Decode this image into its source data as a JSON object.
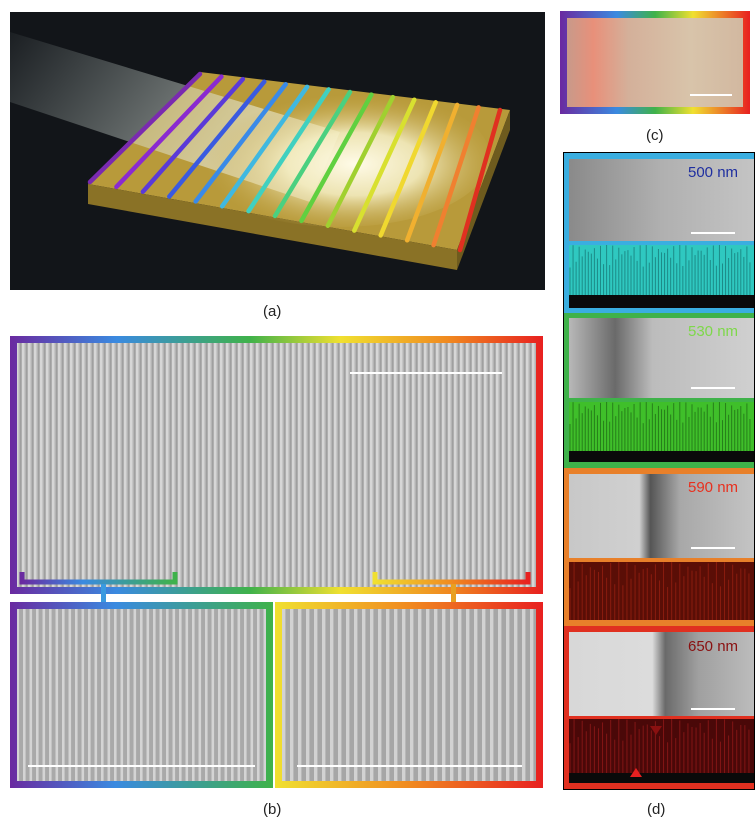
{
  "captions": {
    "a": "(a)",
    "b": "(b)",
    "c": "(c)",
    "d": "(d)"
  },
  "panel_d": {
    "wavelengths": [
      {
        "label": "500 nm",
        "color": "#1f2fa0",
        "frame": "#3aaee0",
        "sim": "#2fc8c0"
      },
      {
        "label": "530 nm",
        "color": "#7ed84a",
        "frame": "#3fb24a",
        "sim": "#3fbf2a"
      },
      {
        "label": "590 nm",
        "color": "#e8301e",
        "frame": "#e8802a",
        "sim": "#7a1208"
      },
      {
        "label": "650 nm",
        "color": "#8a1010",
        "frame": "#e03020",
        "sim": "#6a0a0a"
      }
    ]
  },
  "colors": {
    "rainbow": [
      "#6a2aa0",
      "#3a8ae0",
      "#3fb24a",
      "#f0e030",
      "#f08a20",
      "#e82020"
    ],
    "background_dark": "#121519",
    "substrate": "#b89a3a"
  }
}
